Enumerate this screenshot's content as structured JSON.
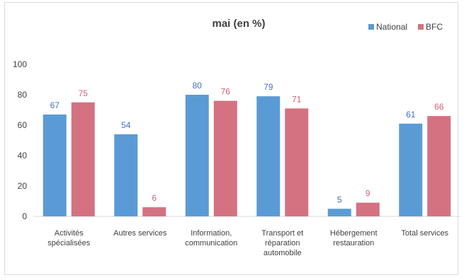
{
  "chart_data": {
    "type": "bar",
    "title": "mai (en %)",
    "xlabel": "",
    "ylabel": "",
    "ylim": [
      0,
      100
    ],
    "yticks": [
      0,
      20,
      40,
      60,
      80,
      100
    ],
    "grid": false,
    "legend_position": "top-right",
    "categories": [
      [
        "Activités",
        "spécialisées"
      ],
      [
        "Autres services"
      ],
      [
        "Information,",
        "communication"
      ],
      [
        "Transport et",
        "réparation",
        "automobile"
      ],
      [
        "Hébergement",
        "restauration"
      ],
      [
        "Total services"
      ]
    ],
    "series": [
      {
        "name": "National",
        "color": "#5b9bd5",
        "label_color": "#4472c4",
        "values": [
          67,
          54,
          80,
          79,
          5,
          61
        ]
      },
      {
        "name": "BFC",
        "color": "#d47281",
        "label_color": "#d0607a",
        "values": [
          75,
          6,
          76,
          71,
          9,
          66
        ]
      }
    ]
  }
}
